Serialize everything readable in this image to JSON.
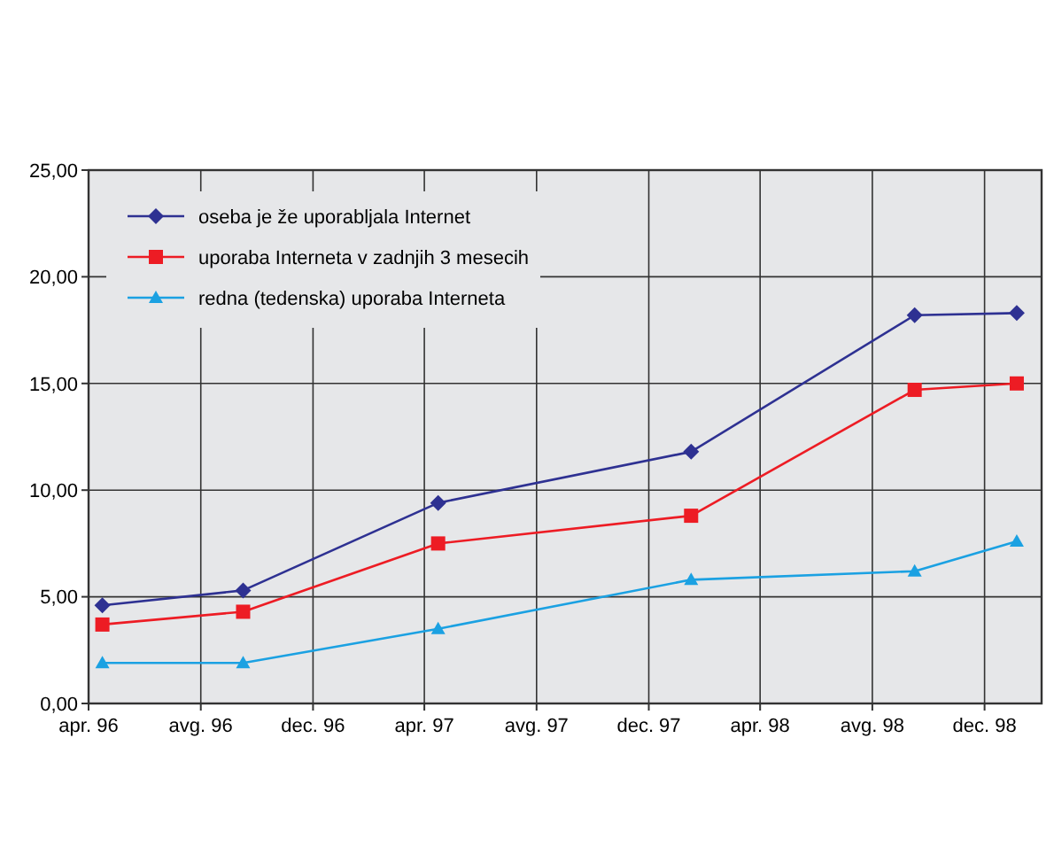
{
  "chart_data": {
    "type": "line",
    "x": [
      "1996-04-16",
      "1996-09-16",
      "1997-04-16",
      "1998-01-16",
      "1998-09-16",
      "1999-01-05"
    ],
    "series": [
      {
        "name": "oseba je že uporabljala Internet",
        "color": "#2e3192",
        "marker": "diamond",
        "values": [
          4.6,
          5.3,
          9.4,
          11.8,
          18.2,
          18.3
        ]
      },
      {
        "name": "uporaba Interneta v zadnjih 3 mesecih",
        "color": "#ed1c24",
        "marker": "square",
        "values": [
          3.7,
          4.3,
          7.5,
          8.8,
          14.7,
          15.0
        ]
      },
      {
        "name": "redna (tedenska) uporaba Interneta",
        "color": "#1ba1e2",
        "marker": "triangle",
        "values": [
          1.9,
          1.9,
          3.5,
          5.8,
          6.2,
          7.6
        ]
      }
    ],
    "xlim": [
      "1996-04",
      "1999-02"
    ],
    "xticks": [
      {
        "value": "1996-04",
        "label": "apr. 96"
      },
      {
        "value": "1996-08",
        "label": "avg. 96"
      },
      {
        "value": "1996-12",
        "label": "dec. 96"
      },
      {
        "value": "1997-04",
        "label": "apr. 97"
      },
      {
        "value": "1997-08",
        "label": "avg. 97"
      },
      {
        "value": "1997-12",
        "label": "dec. 97"
      },
      {
        "value": "1998-04",
        "label": "apr. 98"
      },
      {
        "value": "1998-08",
        "label": "avg. 98"
      },
      {
        "value": "1998-12",
        "label": "dec. 98"
      }
    ],
    "ylim": [
      0,
      25
    ],
    "yticks": [
      {
        "value": 0,
        "label": "0,00"
      },
      {
        "value": 5,
        "label": "5,00"
      },
      {
        "value": 10,
        "label": "10,00"
      },
      {
        "value": 15,
        "label": "15,00"
      },
      {
        "value": 20,
        "label": "20,00"
      },
      {
        "value": 25,
        "label": "25,00"
      }
    ],
    "grid": true,
    "legend": "top left",
    "line_style": "solid"
  }
}
